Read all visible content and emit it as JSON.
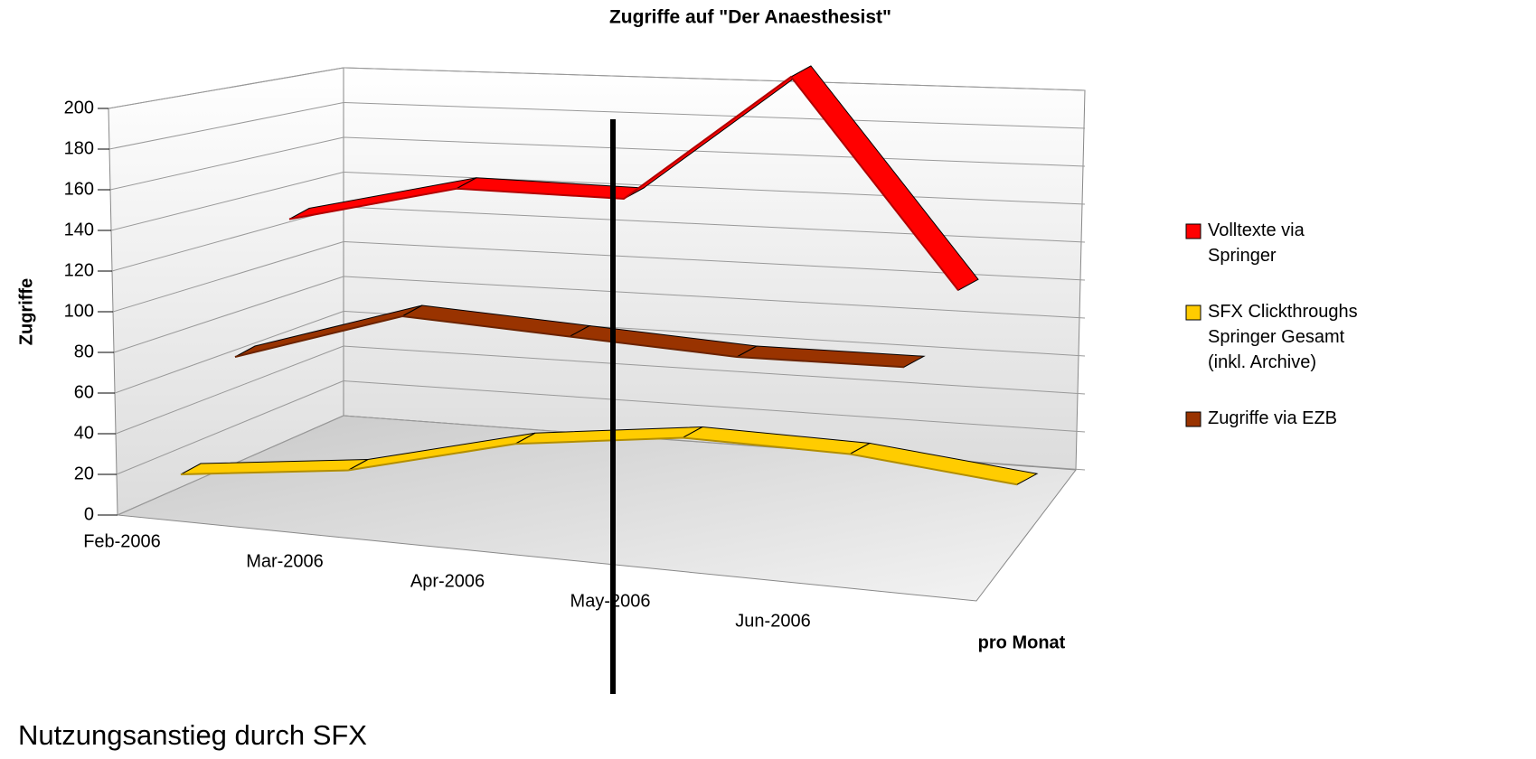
{
  "chart_data": {
    "type": "line",
    "title": "Zugriffe auf \"Der Anaesthesist\"",
    "ylabel": "Zugriffe",
    "xlabel": "pro Monat",
    "annotation": "Nutzungsanstieg durch SFX",
    "categories": [
      "Feb-2006",
      "Mar-2006",
      "Apr-2006",
      "May-2006",
      "Jun-2006",
      null
    ],
    "series": [
      {
        "name": "Volltexte via Springer",
        "color": "#ff0000",
        "values": [
          110,
          125,
          120,
          180,
          75,
          null
        ]
      },
      {
        "name": "SFX Clickthroughs Springer Gesamt (inkl. Archive)",
        "color": "#ffcc00",
        "values": [
          20,
          22,
          35,
          38,
          30,
          15
        ]
      },
      {
        "name": "Zugriffe via EZB",
        "color": "#993300",
        "values": [
          60,
          80,
          70,
          60,
          55,
          null
        ]
      }
    ],
    "ylim": [
      0,
      200
    ],
    "yticks": [
      0,
      20,
      40,
      60,
      80,
      100,
      120,
      140,
      160,
      180,
      200
    ],
    "grid": true,
    "legend": "right"
  }
}
